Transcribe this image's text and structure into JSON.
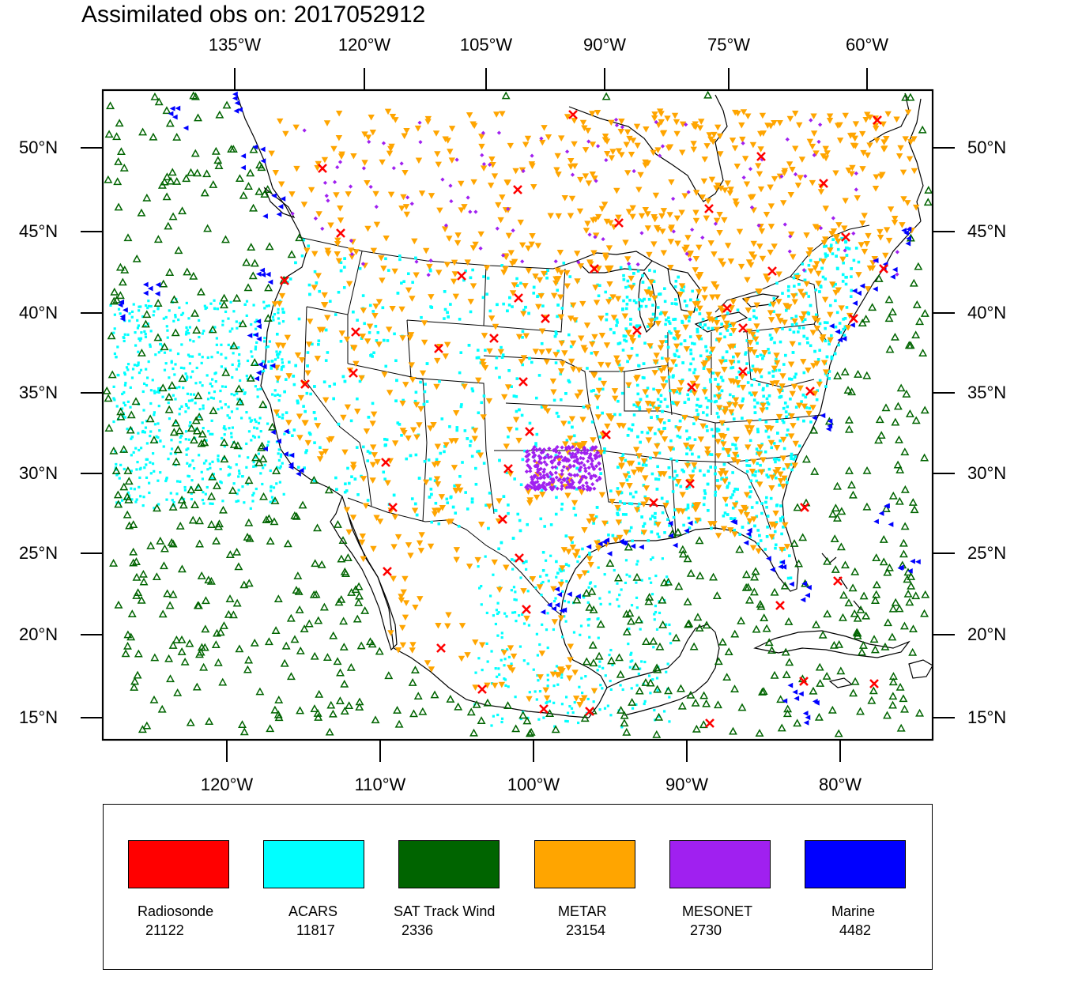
{
  "title": "Assimilated obs on: 2017052912",
  "map": {
    "top_lon_labels": [
      "135°W",
      "120°W",
      "105°W",
      "90°W",
      "75°W",
      "60°W"
    ],
    "bottom_lon_labels": [
      "120°W",
      "110°W",
      "100°W",
      "90°W",
      "80°W"
    ],
    "lat_labels": [
      "50°N",
      "45°N",
      "40°N",
      "35°N",
      "30°N",
      "25°N",
      "20°N",
      "15°N"
    ],
    "extent": {
      "lon_min": -128,
      "lon_max": -74,
      "lat_min": 14,
      "lat_max": 53
    },
    "background": "#ffffff",
    "coastline_color": "#000000"
  },
  "legend": {
    "items": [
      {
        "name": "Radiosonde",
        "count": "21122",
        "color": "#ff0000",
        "marker": "x"
      },
      {
        "name": "ACARS",
        "count": "11817",
        "color": "#00ffff",
        "marker": "dot"
      },
      {
        "name": "SAT Track Wind",
        "count": "2336",
        "color": "#006400",
        "marker": "triangle-up"
      },
      {
        "name": "METAR",
        "count": "23154",
        "color": "#ffa500",
        "marker": "triangle-down"
      },
      {
        "name": "MESONET",
        "count": "2730",
        "color": "#a020f0",
        "marker": "diamond"
      },
      {
        "name": "Marine",
        "count": "4482",
        "color": "#0000ff",
        "marker": "triangle-left"
      }
    ]
  }
}
